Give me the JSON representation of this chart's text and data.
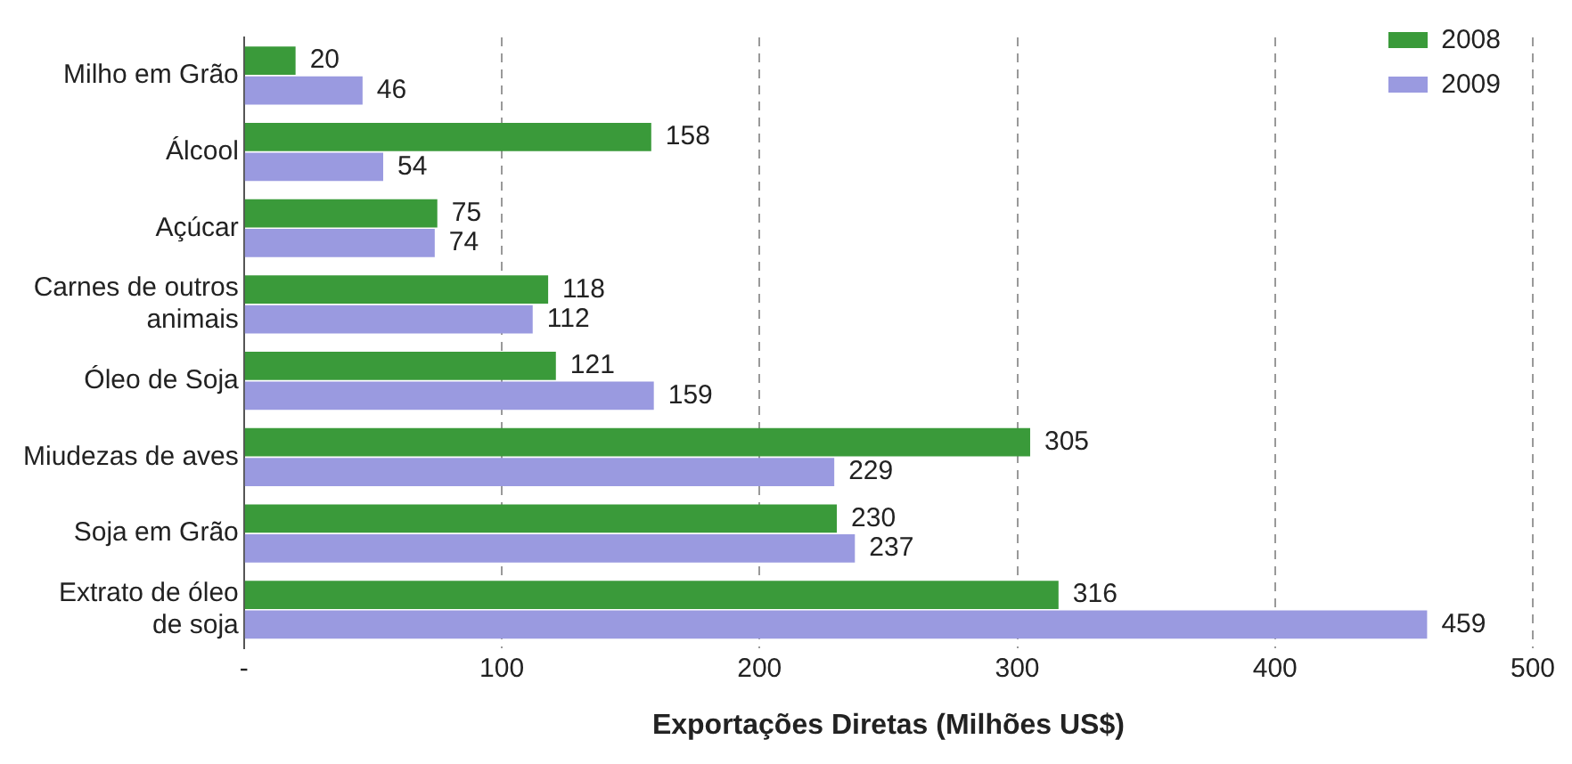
{
  "chart_data": {
    "type": "bar",
    "orientation": "horizontal",
    "xlabel": "Exportações Diretas (Milhões US$)",
    "categories": [
      "Milho em Grão",
      "Álcool",
      "Açúcar",
      "Carnes de outros animais",
      "Óleo de Soja",
      "Miudezas de aves",
      "Soja em Grão",
      "Extrato de óleo de soja"
    ],
    "series": [
      {
        "name": "2008",
        "color": "#3a9a3a",
        "values": [
          20,
          158,
          75,
          118,
          121,
          305,
          230,
          316
        ]
      },
      {
        "name": "2009",
        "color": "#9a9ae0",
        "values": [
          46,
          54,
          74,
          112,
          159,
          229,
          237,
          459
        ]
      }
    ],
    "xlim": [
      0,
      500
    ],
    "xticks": [
      {
        "value": 0,
        "label": "-"
      },
      100,
      200,
      300,
      400,
      500
    ],
    "grid": "x",
    "legend": "top right",
    "data_labels": true
  }
}
